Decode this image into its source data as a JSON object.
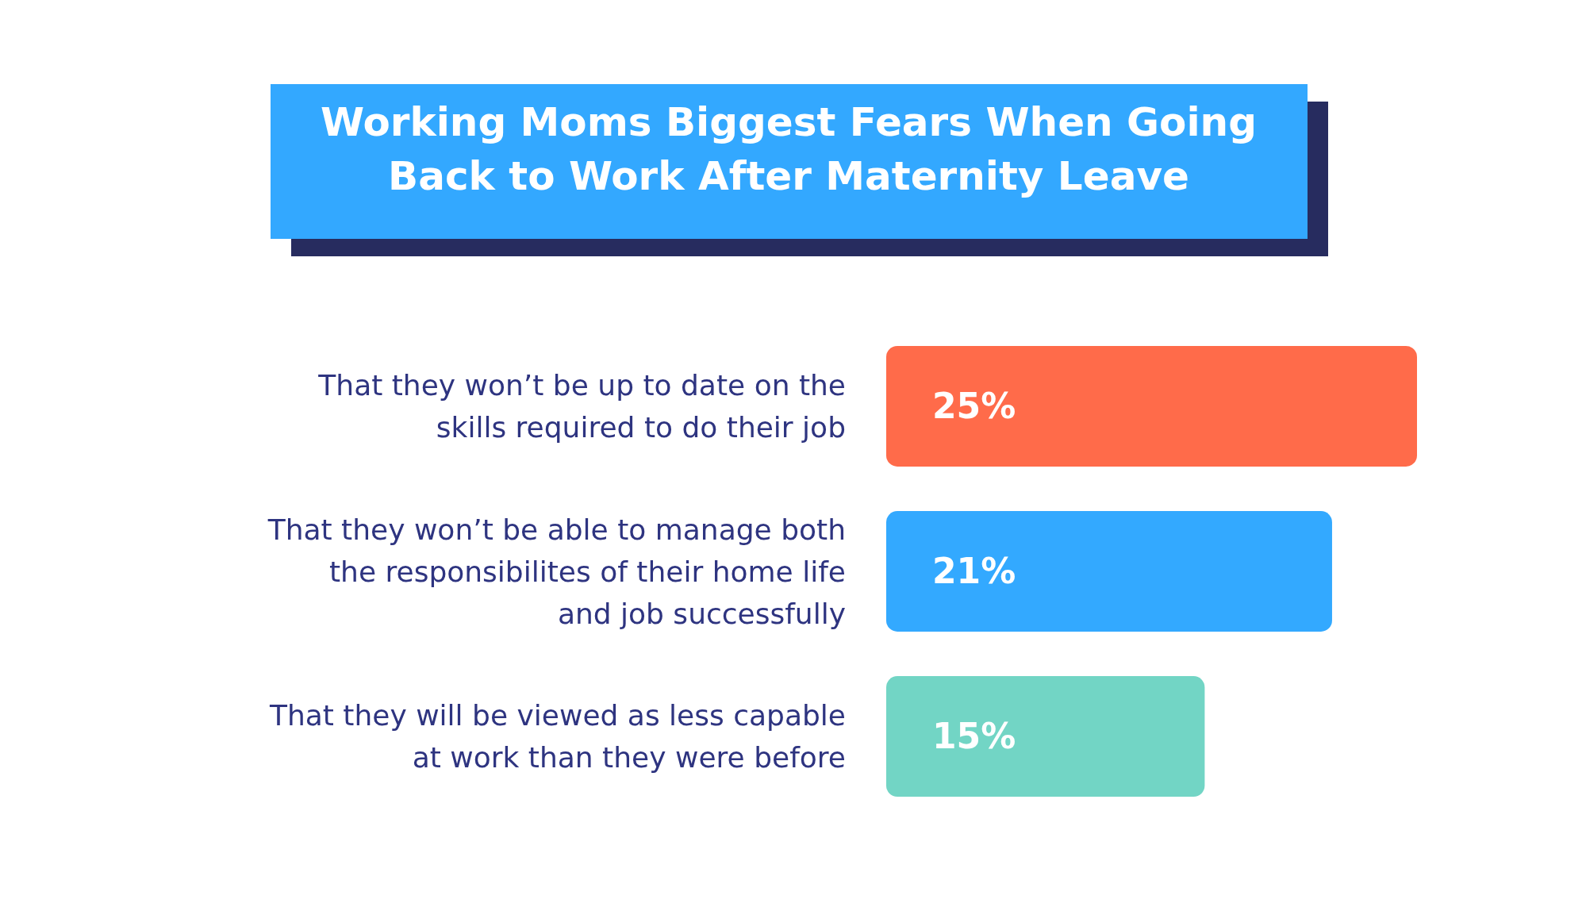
{
  "chart_data": {
    "type": "bar",
    "orientation": "horizontal",
    "title": "Working Moms Biggest Fears When Going Back to Work After Maternity Leave",
    "categories": [
      "That they won’t be up to date on the skills required to do their job",
      "That they won’t be able to manage both the responsibilites of their home life and job successfully",
      "That they will be viewed as less capable at work than they were before"
    ],
    "values": [
      25,
      21,
      15
    ],
    "colors": [
      "#ff6b4a",
      "#33a9ff",
      "#72d5c5"
    ],
    "value_labels": [
      "25%",
      "21%",
      "15%"
    ],
    "xlim": [
      0,
      25
    ]
  }
}
